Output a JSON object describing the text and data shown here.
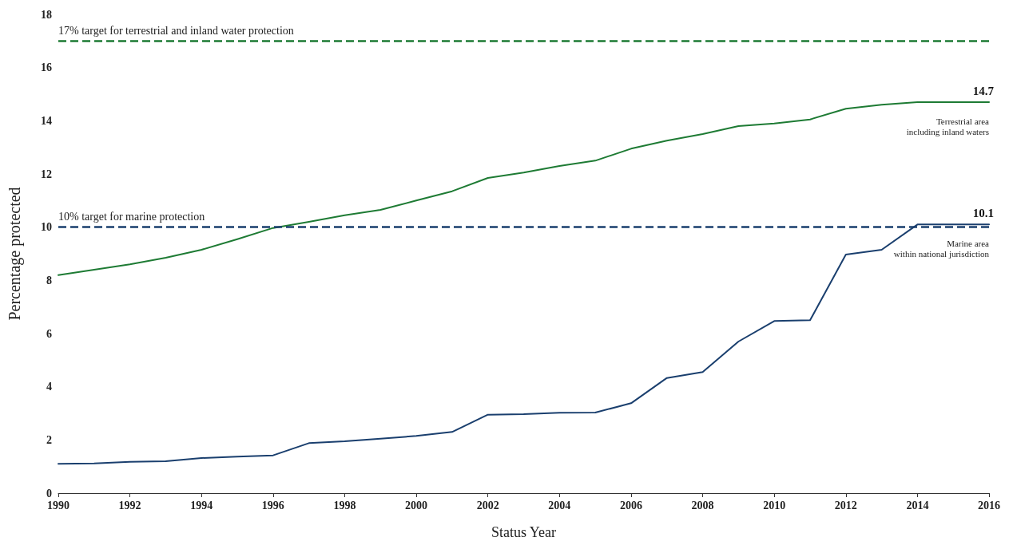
{
  "chart_data": {
    "type": "line",
    "xlabel": "Status Year",
    "ylabel": "Percentage protected",
    "x": [
      1990,
      1991,
      1992,
      1993,
      1994,
      1995,
      1996,
      1997,
      1998,
      1999,
      2000,
      2001,
      2002,
      2003,
      2004,
      2005,
      2006,
      2007,
      2008,
      2009,
      2010,
      2011,
      2012,
      2013,
      2014,
      2015,
      2016
    ],
    "series": [
      {
        "name": "Terrestrial area\nincluding inland waters",
        "color": "#1e7b34",
        "values": [
          8.2,
          8.4,
          8.6,
          8.85,
          9.15,
          9.55,
          9.97,
          10.2,
          10.45,
          10.65,
          11.0,
          11.35,
          11.85,
          12.05,
          12.3,
          12.5,
          12.95,
          13.25,
          13.5,
          13.8,
          13.9,
          14.05,
          14.45,
          14.6,
          14.7,
          14.7,
          14.7
        ],
        "value_labels": [
          null,
          null,
          null,
          null,
          null,
          null,
          null,
          null,
          null,
          null,
          null,
          null,
          null,
          null,
          null,
          null,
          null,
          null,
          null,
          null,
          null,
          null,
          null,
          null,
          null,
          null,
          "14.7"
        ]
      },
      {
        "name": "Marine area\nwithin national jurisdiction",
        "color": "#1a3f6e",
        "values": [
          1.1,
          1.12,
          1.18,
          1.2,
          1.32,
          1.37,
          1.42,
          1.88,
          1.95,
          2.05,
          2.15,
          2.3,
          2.95,
          2.97,
          3.02,
          3.03,
          3.38,
          4.33,
          4.55,
          5.7,
          6.47,
          6.5,
          8.97,
          9.15,
          10.1,
          10.1,
          10.1
        ],
        "value_labels": [
          null,
          null,
          null,
          null,
          null,
          null,
          null,
          null,
          null,
          null,
          null,
          null,
          null,
          null,
          null,
          null,
          null,
          null,
          null,
          null,
          null,
          null,
          null,
          null,
          null,
          null,
          "10.1"
        ]
      }
    ],
    "ref_lines": [
      {
        "axis": "y",
        "value": 17,
        "label": "17% target for terrestrial and inland water protection",
        "color": "#1e7b34",
        "line_style": "dashed"
      },
      {
        "axis": "y",
        "value": 10,
        "label": "10% target for marine protection",
        "color": "#1a3f6e",
        "line_style": "dashed"
      }
    ],
    "xlim": [
      1990,
      2016
    ],
    "xticks": [
      1990,
      1992,
      1994,
      1996,
      1998,
      2000,
      2002,
      2004,
      2006,
      2008,
      2010,
      2012,
      2014,
      2016
    ],
    "ylim": [
      0,
      18
    ],
    "yticks": [
      0,
      2,
      4,
      6,
      8,
      10,
      12,
      14,
      16,
      18
    ],
    "grid": false,
    "legend": false,
    "marker": "none",
    "line_style": "solid"
  }
}
